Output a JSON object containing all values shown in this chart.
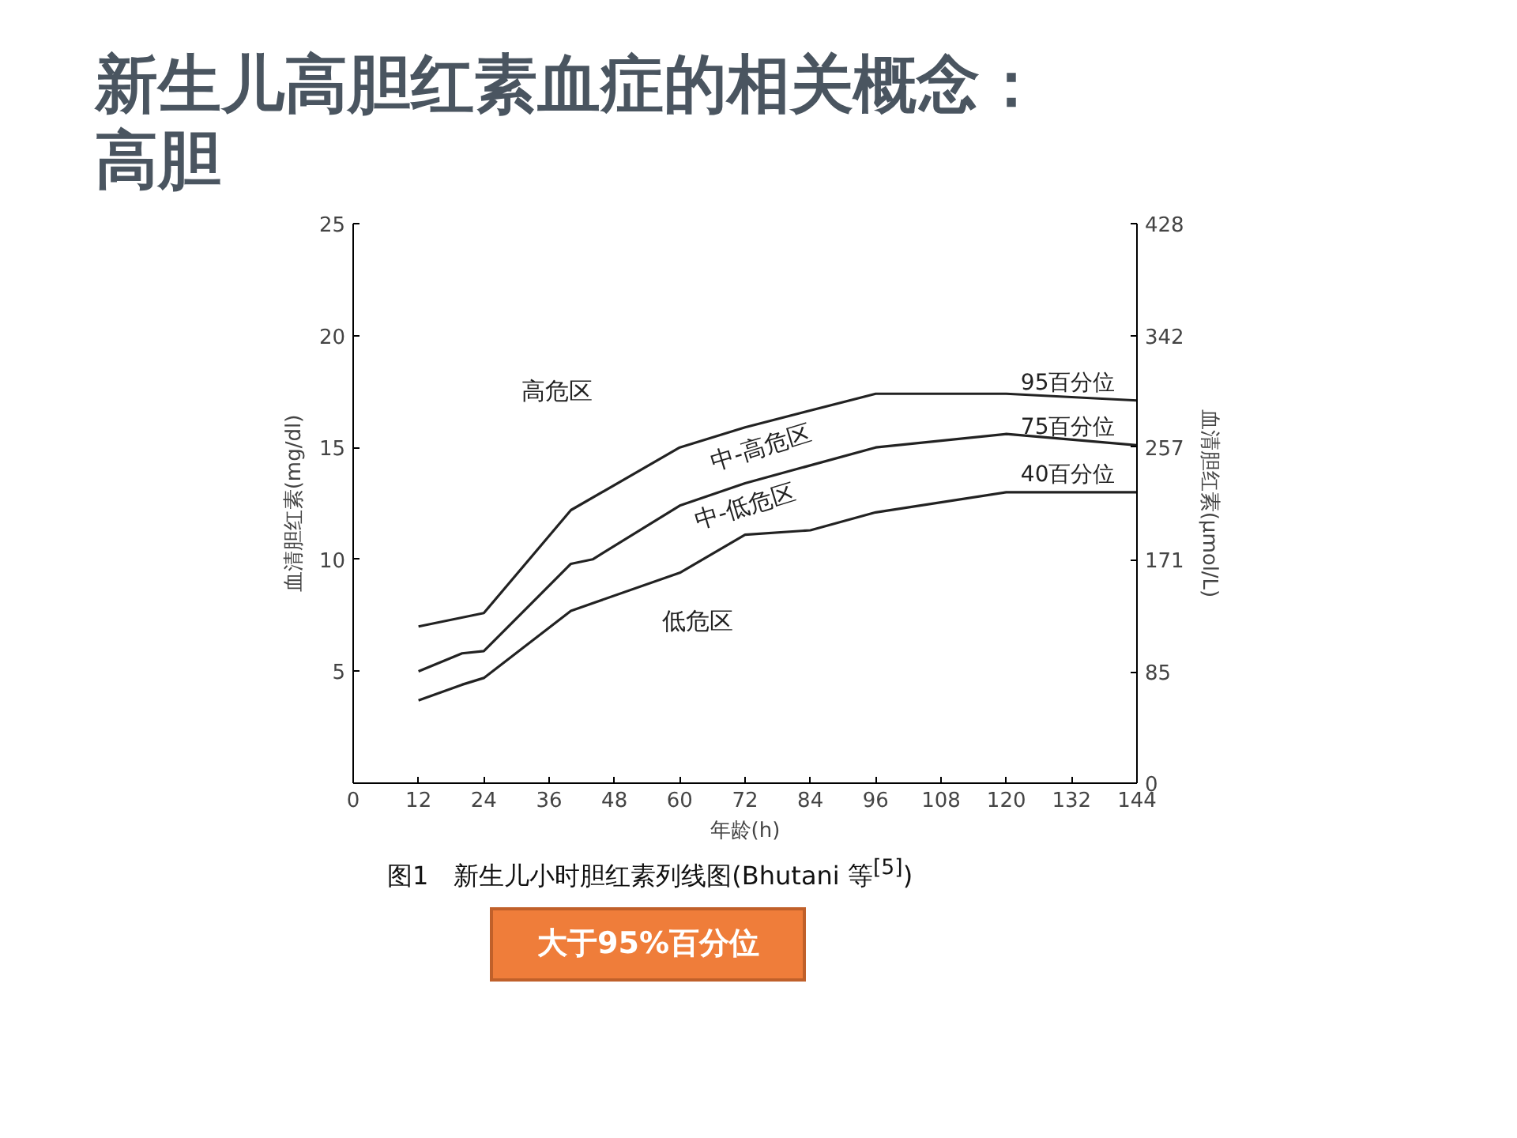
{
  "chart_data": {
    "type": "line",
    "title": "新生儿高胆红素血症的相关概念：高胆",
    "xlabel": "年龄(h)",
    "ylabel": "血清胆红素(mg/dl)",
    "y2label": "血清胆红素(μmol/L)",
    "xlim": [
      0,
      144
    ],
    "xticks": [
      0,
      12,
      24,
      36,
      48,
      60,
      72,
      84,
      96,
      108,
      120,
      132,
      144
    ],
    "ylim": [
      0,
      25
    ],
    "yticks": [
      5,
      10,
      15,
      20,
      25
    ],
    "y2lim": [
      0,
      428
    ],
    "y2ticks": [
      0,
      85,
      171,
      257,
      342,
      428
    ],
    "grid": false,
    "marker": "none",
    "line_style": "solid",
    "series": [
      {
        "name": "95百分位",
        "color": "#222222",
        "x": [
          12,
          24,
          40,
          60,
          72,
          96,
          120,
          144
        ],
        "values": [
          7.0,
          7.6,
          12.2,
          15.0,
          15.9,
          17.4,
          17.4,
          17.1
        ]
      },
      {
        "name": "75百分位",
        "color": "#222222",
        "x": [
          12,
          20,
          24,
          40,
          44,
          60,
          72,
          96,
          120,
          144
        ],
        "values": [
          5.0,
          5.8,
          5.9,
          9.8,
          10.0,
          12.4,
          13.4,
          15.0,
          15.6,
          15.1
        ]
      },
      {
        "name": "40百分位",
        "color": "#222222",
        "x": [
          12,
          20,
          24,
          40,
          60,
          72,
          84,
          96,
          120,
          144
        ],
        "values": [
          3.7,
          4.4,
          4.7,
          7.7,
          9.4,
          11.1,
          11.3,
          12.1,
          13.0,
          13.0
        ]
      }
    ],
    "annotations": [
      "高危区",
      "中-高危区",
      "中-低危区",
      "低危区",
      "图1　新生儿小时胆红素列线图(Bhutani 等$^{[5]}$)",
      "大于95%百分位"
    ]
  }
}
